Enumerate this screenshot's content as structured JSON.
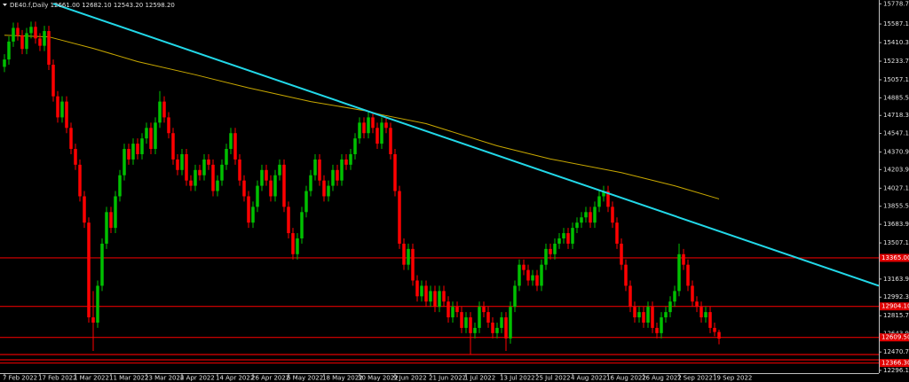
{
  "chart_data": {
    "type": "candlestick",
    "title": "DE40.f,Daily  12661.00 12682.10 12543.20 12598.20",
    "up_color": "#00c000",
    "down_color": "#ff0000",
    "background": "#000000",
    "xlim": [
      -1,
      197
    ],
    "ylim": [
      12270,
      15815
    ],
    "xticks": [
      {
        "value": 0,
        "label": "7 Feb 2022"
      },
      {
        "value": 8,
        "label": "17 Feb 2022"
      },
      {
        "value": 16,
        "label": "1 Mar 2022"
      },
      {
        "value": 24,
        "label": "11 Mar 2022"
      },
      {
        "value": 32,
        "label": "23 Mar 2022"
      },
      {
        "value": 40,
        "label": "4 Apr 2022"
      },
      {
        "value": 48,
        "label": "14 Apr 2022"
      },
      {
        "value": 56,
        "label": "26 Apr 2022"
      },
      {
        "value": 64,
        "label": "6 May 2022"
      },
      {
        "value": 72,
        "label": "18 May 2022"
      },
      {
        "value": 80,
        "label": "30 May 2022"
      },
      {
        "value": 88,
        "label": "9 Jun 2022"
      },
      {
        "value": 96,
        "label": "21 Jun 2022"
      },
      {
        "value": 104,
        "label": "1 Jul 2022"
      },
      {
        "value": 112,
        "label": "13 Jul 2022"
      },
      {
        "value": 120,
        "label": "25 Jul 2022"
      },
      {
        "value": 128,
        "label": "4 Aug 2022"
      },
      {
        "value": 136,
        "label": "16 Aug 2022"
      },
      {
        "value": 144,
        "label": "26 Aug 2022"
      },
      {
        "value": 152,
        "label": "7 Sep 2022"
      },
      {
        "value": 160,
        "label": "19 Sep 2022"
      }
    ],
    "yticks": [
      {
        "value": 15778.7,
        "label": "15778.70"
      },
      {
        "value": 15587.1,
        "label": "15587.10"
      },
      {
        "value": 15410.3,
        "label": "15410.30"
      },
      {
        "value": 15233.7,
        "label": "15233.70"
      },
      {
        "value": 15057.1,
        "label": "15057.10"
      },
      {
        "value": 14885.5,
        "label": "14885.50"
      },
      {
        "value": 14718.3,
        "label": "14718.30"
      },
      {
        "value": 14547.1,
        "label": "14547.10"
      },
      {
        "value": 14370.9,
        "label": "14370.90"
      },
      {
        "value": 14203.9,
        "label": "14203.90"
      },
      {
        "value": 14027.1,
        "label": "14027.10"
      },
      {
        "value": 13855.5,
        "label": "13855.50"
      },
      {
        "value": 13683.9,
        "label": "13683.90"
      },
      {
        "value": 13507.1,
        "label": "13507.10"
      },
      {
        "value": 13163.9,
        "label": "13163.90"
      },
      {
        "value": 12992.3,
        "label": "12992.30"
      },
      {
        "value": 12815.7,
        "label": "12815.70"
      },
      {
        "value": 12643.9,
        "label": "12643.90"
      },
      {
        "value": 12470.7,
        "label": "12470.70"
      },
      {
        "value": 12296.1,
        "label": "12296.10"
      }
    ],
    "levels": [
      {
        "value": 13365,
        "label": "13365.00"
      },
      {
        "value": 12904.1,
        "label": "12904.10"
      },
      {
        "value": 12609.5,
        "label": "12609.50"
      },
      12447,
      12396,
      {
        "value": 12366.3,
        "label": "12366.30"
      }
    ],
    "level_color": "#e00000",
    "moving_average": {
      "color": "#c8a800",
      "x": [
        0,
        10,
        20,
        30,
        43,
        55,
        69,
        81,
        85,
        95,
        111,
        123,
        139,
        151,
        161
      ],
      "values": [
        15480,
        15465,
        15355,
        15230,
        15105,
        14980,
        14850,
        14765,
        14725,
        14640,
        14430,
        14305,
        14175,
        14050,
        13925
      ]
    },
    "trendline": {
      "color": "#22d8e8",
      "x": [
        11,
        197
      ],
      "values": [
        15780,
        13100
      ]
    },
    "candles": [
      [
        15180,
        15300,
        15130,
        15250
      ],
      [
        15250,
        15470,
        15200,
        15420
      ],
      [
        15420,
        15600,
        15370,
        15550
      ],
      [
        15550,
        15600,
        15430,
        15480
      ],
      [
        15480,
        15530,
        15300,
        15350
      ],
      [
        15350,
        15550,
        15300,
        15500
      ],
      [
        15500,
        15610,
        15450,
        15560
      ],
      [
        15560,
        15610,
        15400,
        15450
      ],
      [
        15450,
        15500,
        15330,
        15380
      ],
      [
        15380,
        15570,
        15330,
        15520
      ],
      [
        15520,
        15570,
        15150,
        15200
      ],
      [
        15200,
        15250,
        14850,
        14900
      ],
      [
        14900,
        14950,
        14650,
        14700
      ],
      [
        14700,
        14900,
        14650,
        14850
      ],
      [
        14850,
        14900,
        14550,
        14600
      ],
      [
        14600,
        14650,
        14350,
        14400
      ],
      [
        14400,
        14450,
        14200,
        14250
      ],
      [
        14250,
        14300,
        13900,
        13950
      ],
      [
        13950,
        14000,
        13650,
        13700
      ],
      [
        13700,
        13750,
        12750,
        12800
      ],
      [
        12800,
        13050,
        12480,
        12750
      ],
      [
        12750,
        13150,
        12700,
        13100
      ],
      [
        13100,
        13550,
        13050,
        13500
      ],
      [
        13500,
        13850,
        13450,
        13800
      ],
      [
        13800,
        13850,
        13600,
        13650
      ],
      [
        13650,
        14000,
        13600,
        13950
      ],
      [
        13950,
        14200,
        13900,
        14150
      ],
      [
        14150,
        14450,
        14100,
        14400
      ],
      [
        14400,
        14450,
        14250,
        14300
      ],
      [
        14300,
        14500,
        14250,
        14450
      ],
      [
        14450,
        14500,
        14300,
        14350
      ],
      [
        14350,
        14550,
        14300,
        14500
      ],
      [
        14500,
        14650,
        14450,
        14600
      ],
      [
        14600,
        14650,
        14350,
        14400
      ],
      [
        14400,
        14700,
        14350,
        14650
      ],
      [
        14650,
        14950,
        14600,
        14850
      ],
      [
        14850,
        14900,
        14650,
        14700
      ],
      [
        14700,
        14750,
        14500,
        14550
      ],
      [
        14550,
        14600,
        14250,
        14300
      ],
      [
        14300,
        14350,
        14150,
        14200
      ],
      [
        14200,
        14400,
        14150,
        14350
      ],
      [
        14350,
        14400,
        14050,
        14100
      ],
      [
        14100,
        14150,
        14000,
        14050
      ],
      [
        14050,
        14250,
        14000,
        14200
      ],
      [
        14200,
        14250,
        14100,
        14150
      ],
      [
        14150,
        14350,
        14100,
        14300
      ],
      [
        14300,
        14350,
        14200,
        14250
      ],
      [
        14250,
        14300,
        13950,
        14000
      ],
      [
        14000,
        14150,
        13950,
        14100
      ],
      [
        14100,
        14300,
        14050,
        14250
      ],
      [
        14250,
        14450,
        14200,
        14400
      ],
      [
        14400,
        14600,
        14350,
        14550
      ],
      [
        14550,
        14600,
        14250,
        14300
      ],
      [
        14300,
        14350,
        14050,
        14100
      ],
      [
        14100,
        14150,
        13900,
        13950
      ],
      [
        13950,
        14000,
        13650,
        13700
      ],
      [
        13700,
        13900,
        13650,
        13850
      ],
      [
        13850,
        14100,
        13800,
        14050
      ],
      [
        14050,
        14250,
        14000,
        14200
      ],
      [
        14200,
        14250,
        14050,
        14100
      ],
      [
        14100,
        14150,
        13900,
        13950
      ],
      [
        13950,
        14200,
        13900,
        14150
      ],
      [
        14150,
        14300,
        14100,
        14250
      ],
      [
        14250,
        14300,
        13800,
        13850
      ],
      [
        13850,
        13900,
        13550,
        13600
      ],
      [
        13600,
        13650,
        13350,
        13400
      ],
      [
        13400,
        13600,
        13350,
        13550
      ],
      [
        13550,
        13850,
        13500,
        13800
      ],
      [
        13800,
        14050,
        13750,
        14000
      ],
      [
        14000,
        14200,
        13950,
        14150
      ],
      [
        14150,
        14350,
        14100,
        14300
      ],
      [
        14300,
        14350,
        14050,
        14100
      ],
      [
        14100,
        14150,
        13900,
        13950
      ],
      [
        13950,
        14100,
        13900,
        14050
      ],
      [
        14050,
        14250,
        14000,
        14200
      ],
      [
        14200,
        14250,
        14050,
        14100
      ],
      [
        14100,
        14350,
        14050,
        14300
      ],
      [
        14300,
        14350,
        14200,
        14250
      ],
      [
        14250,
        14400,
        14200,
        14350
      ],
      [
        14350,
        14550,
        14300,
        14500
      ],
      [
        14500,
        14700,
        14450,
        14650
      ],
      [
        14650,
        14700,
        14500,
        14550
      ],
      [
        14550,
        14750,
        14500,
        14700
      ],
      [
        14700,
        14750,
        14550,
        14600
      ],
      [
        14600,
        14650,
        14400,
        14450
      ],
      [
        14450,
        14700,
        14400,
        14650
      ],
      [
        14650,
        14700,
        14550,
        14600
      ],
      [
        14600,
        14650,
        14300,
        14350
      ],
      [
        14350,
        14400,
        13950,
        14000
      ],
      [
        14000,
        14050,
        13450,
        13500
      ],
      [
        13500,
        13550,
        13250,
        13300
      ],
      [
        13300,
        13500,
        13250,
        13450
      ],
      [
        13450,
        13500,
        13100,
        13150
      ],
      [
        13150,
        13200,
        12950,
        13000
      ],
      [
        13000,
        13150,
        12950,
        13100
      ],
      [
        13100,
        13150,
        12900,
        12950
      ],
      [
        12950,
        13100,
        12900,
        13050
      ],
      [
        13050,
        13100,
        12850,
        12900
      ],
      [
        12900,
        13100,
        12850,
        13050
      ],
      [
        13050,
        13100,
        12900,
        12950
      ],
      [
        12950,
        13000,
        12750,
        12800
      ],
      [
        12800,
        12950,
        12750,
        12900
      ],
      [
        12900,
        12950,
        12800,
        12850
      ],
      [
        12850,
        12900,
        12650,
        12700
      ],
      [
        12700,
        12850,
        12650,
        12800
      ],
      [
        12800,
        12850,
        12450,
        12650
      ],
      [
        12650,
        12750,
        12600,
        12700
      ],
      [
        12700,
        12950,
        12650,
        12900
      ],
      [
        12900,
        12950,
        12800,
        12850
      ],
      [
        12850,
        12900,
        12700,
        12750
      ],
      [
        12750,
        12800,
        12600,
        12650
      ],
      [
        12650,
        12750,
        12600,
        12700
      ],
      [
        12700,
        12850,
        12650,
        12800
      ],
      [
        12800,
        12850,
        12480,
        12600
      ],
      [
        12600,
        12950,
        12550,
        12900
      ],
      [
        12900,
        13150,
        12850,
        13100
      ],
      [
        13100,
        13350,
        13050,
        13300
      ],
      [
        13300,
        13350,
        13200,
        13250
      ],
      [
        13250,
        13300,
        13100,
        13150
      ],
      [
        13150,
        13250,
        13100,
        13200
      ],
      [
        13200,
        13250,
        13050,
        13100
      ],
      [
        13100,
        13350,
        13050,
        13300
      ],
      [
        13300,
        13500,
        13250,
        13450
      ],
      [
        13450,
        13500,
        13350,
        13400
      ],
      [
        13400,
        13550,
        13350,
        13500
      ],
      [
        13500,
        13600,
        13450,
        13550
      ],
      [
        13550,
        13650,
        13500,
        13600
      ],
      [
        13600,
        13650,
        13450,
        13500
      ],
      [
        13500,
        13700,
        13450,
        13650
      ],
      [
        13650,
        13750,
        13600,
        13700
      ],
      [
        13700,
        13800,
        13650,
        13750
      ],
      [
        13750,
        13850,
        13700,
        13800
      ],
      [
        13800,
        13850,
        13650,
        13700
      ],
      [
        13700,
        13900,
        13650,
        13850
      ],
      [
        13850,
        14000,
        13800,
        13950
      ],
      [
        13950,
        14050,
        13900,
        14000
      ],
      [
        14000,
        14050,
        13800,
        13850
      ],
      [
        13850,
        13900,
        13650,
        13700
      ],
      [
        13700,
        13750,
        13450,
        13500
      ],
      [
        13500,
        13550,
        13250,
        13300
      ],
      [
        13300,
        13350,
        13050,
        13100
      ],
      [
        13100,
        13150,
        12850,
        12900
      ],
      [
        12900,
        12950,
        12750,
        12800
      ],
      [
        12800,
        12900,
        12750,
        12850
      ],
      [
        12850,
        12900,
        12700,
        12750
      ],
      [
        12750,
        12950,
        12700,
        12900
      ],
      [
        12900,
        12950,
        12650,
        12700
      ],
      [
        12700,
        12750,
        12600,
        12650
      ],
      [
        12650,
        12850,
        12600,
        12800
      ],
      [
        12800,
        12900,
        12750,
        12850
      ],
      [
        12850,
        13000,
        12800,
        12950
      ],
      [
        12950,
        13100,
        12900,
        13050
      ],
      [
        13050,
        13500,
        13000,
        13400
      ],
      [
        13400,
        13450,
        13250,
        13300
      ],
      [
        13300,
        13350,
        13050,
        13100
      ],
      [
        13100,
        13150,
        12900,
        12950
      ],
      [
        12950,
        13000,
        12850,
        12900
      ],
      [
        12900,
        12950,
        12750,
        12800
      ],
      [
        12800,
        12900,
        12750,
        12850
      ],
      [
        12850,
        12900,
        12650,
        12700
      ],
      [
        12700,
        12750,
        12620,
        12661
      ],
      [
        12661,
        12682.1,
        12543.2,
        12598.2
      ]
    ]
  }
}
